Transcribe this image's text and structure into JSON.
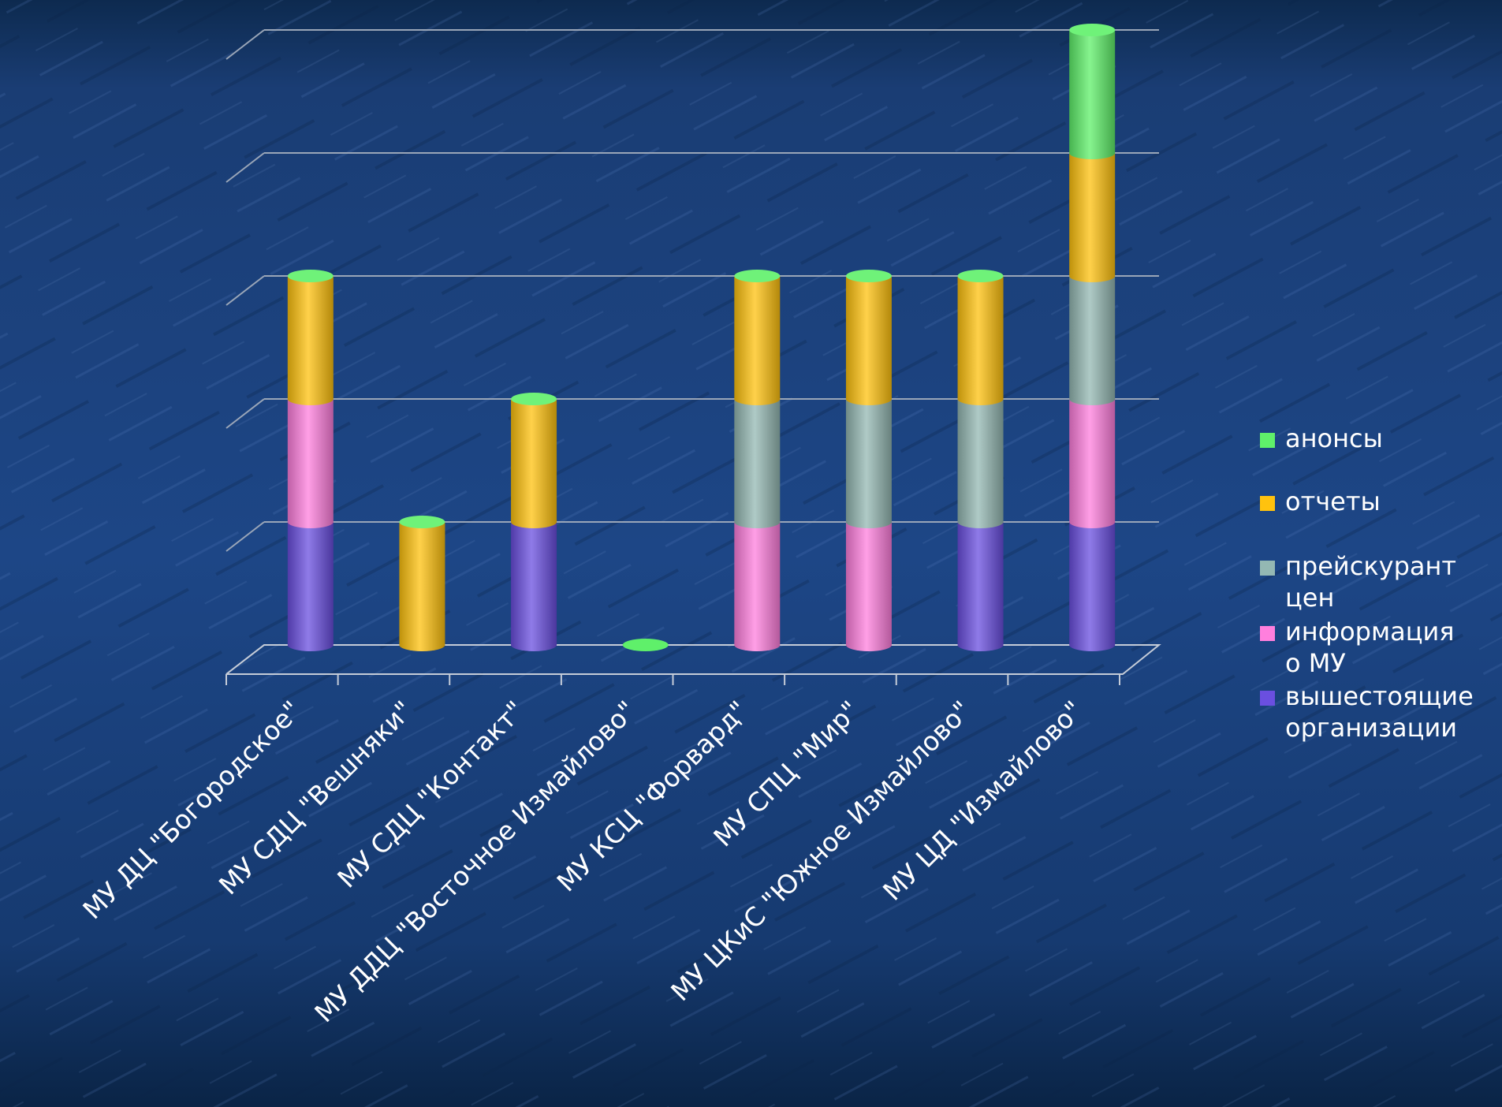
{
  "chart_data": {
    "type": "bar",
    "stacked": true,
    "style": "3d-cylinder",
    "categories": [
      "МУ ДЦ \"Богородское\"",
      "МУ СДЦ \"Вешняки\"",
      "МУ СДЦ \"Контакт\"",
      "МУ ДДЦ \"Восточное Измайлово\"",
      "МУ КСЦ \"Форвард\"",
      "МУ СПЦ \"Мир\"",
      "МУ ЦКиС \"Южное Измайлово\"",
      "МУ ЦД \"Измайлово\""
    ],
    "series": [
      {
        "name": "вышестоящие организации",
        "color": "#6a4fe0",
        "values": [
          1,
          0,
          1,
          0,
          0,
          0,
          1,
          1
        ]
      },
      {
        "name": "информация о МУ",
        "color": "#ff7fdd",
        "values": [
          1,
          0,
          0,
          0,
          1,
          1,
          0,
          1
        ]
      },
      {
        "name": "прейскурант цен",
        "color": "#94b8b3",
        "values": [
          0,
          0,
          0,
          0,
          1,
          1,
          1,
          1
        ]
      },
      {
        "name": "отчеты",
        "color": "#ffc20e",
        "values": [
          1,
          1,
          1,
          0,
          1,
          1,
          1,
          1
        ]
      },
      {
        "name": "анонсы",
        "color": "#5ff06a",
        "values": [
          0,
          0,
          0,
          0,
          0,
          0,
          0,
          1
        ]
      }
    ],
    "ylim": [
      0,
      5
    ],
    "grid": true,
    "legend": "right",
    "title": "",
    "xlabel": "",
    "ylabel": ""
  },
  "legend": {
    "items": [
      {
        "label": "анонсы",
        "color": "#5ff06a"
      },
      {
        "label": "отчеты",
        "color": "#ffc20e"
      },
      {
        "label": "прейскурант\nцен",
        "color": "#94b8b3"
      },
      {
        "label": "информация\nо МУ",
        "color": "#ff7fdd"
      },
      {
        "label": "вышестоящие\nорганизации",
        "color": "#6a4fe0"
      }
    ]
  }
}
